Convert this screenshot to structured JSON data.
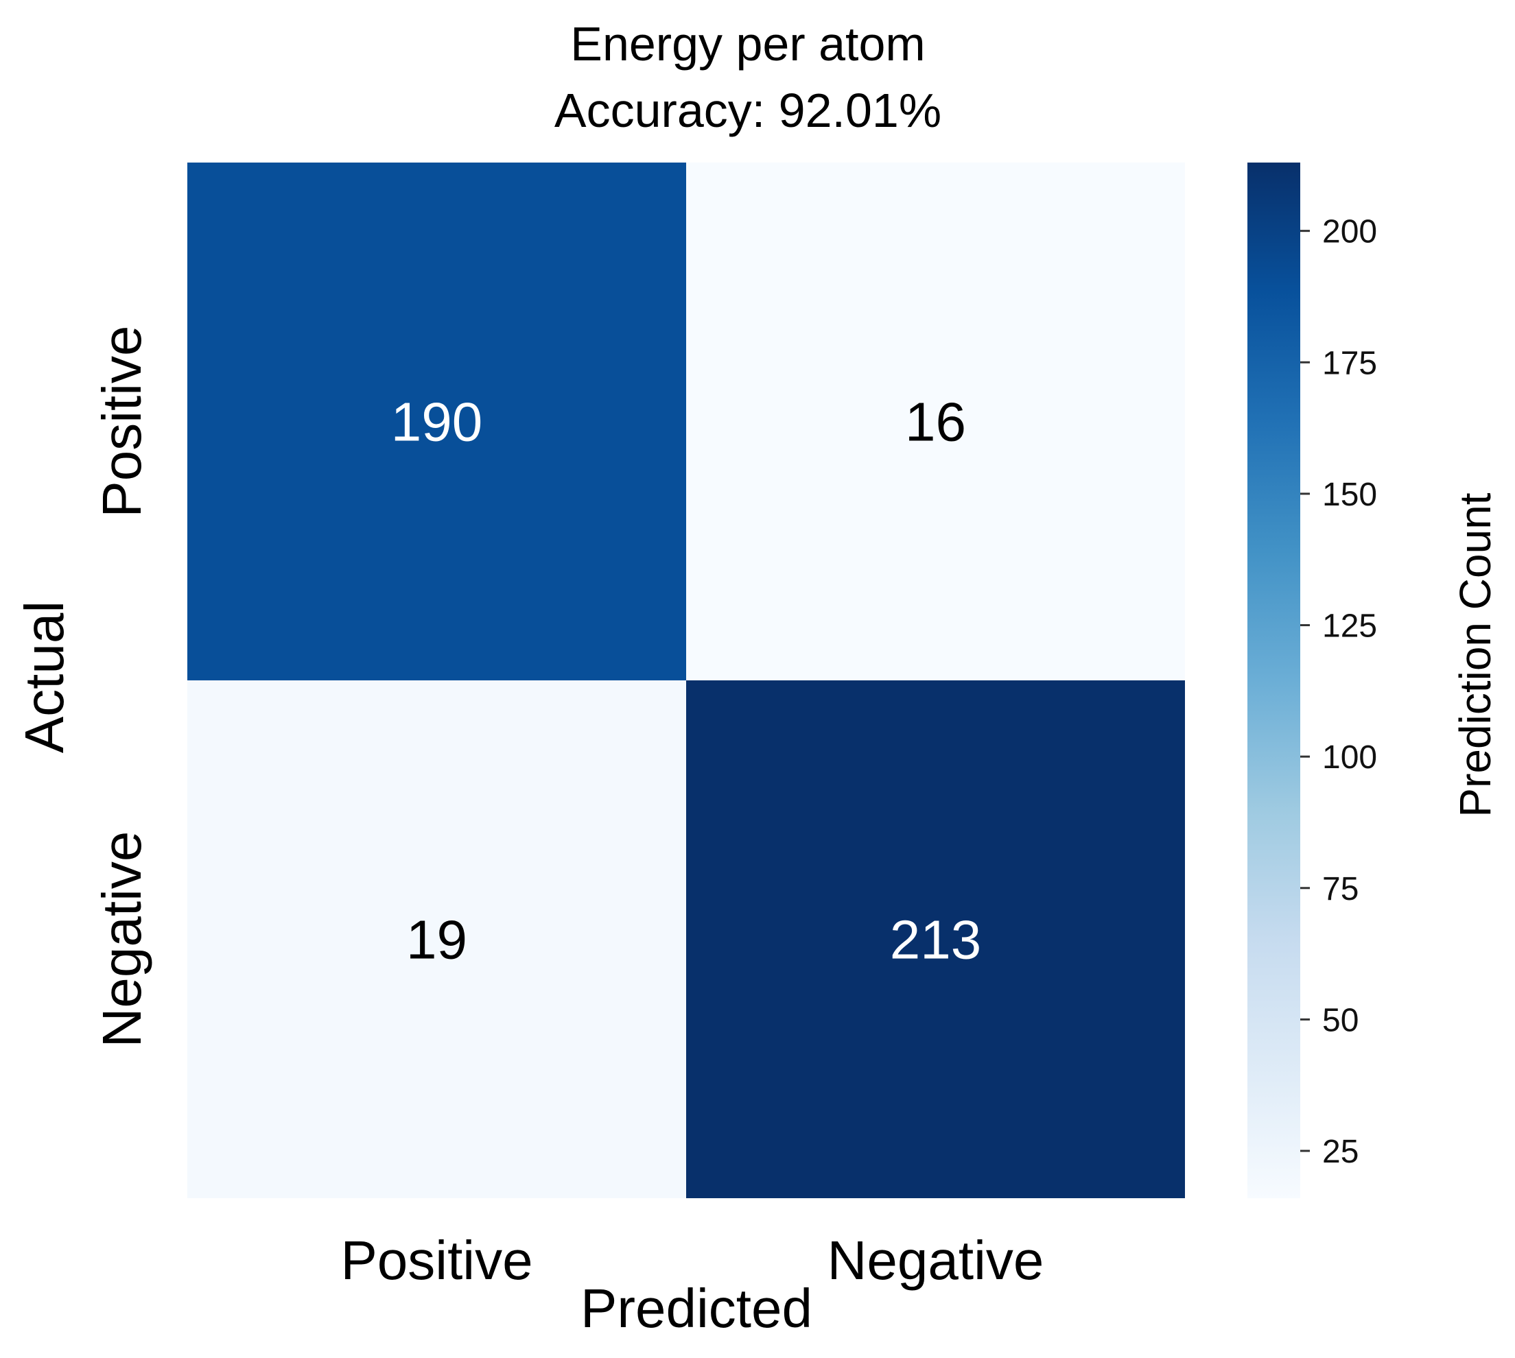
{
  "chart_data": {
    "type": "heatmap",
    "title": "Energy per atom",
    "subtitle": "Accuracy: 92.01%",
    "xlabel": "Predicted",
    "ylabel": "Actual",
    "x_categories": [
      "Positive",
      "Negative"
    ],
    "y_categories": [
      "Positive",
      "Negative"
    ],
    "values": [
      [
        190,
        16
      ],
      [
        19,
        213
      ]
    ],
    "colorbar": {
      "label": "Prediction Count",
      "range": [
        16,
        213
      ],
      "ticks": [
        25,
        50,
        75,
        100,
        125,
        150,
        175,
        200
      ],
      "colormap": "Blues",
      "colors": [
        "#f7fbff",
        "#deebf7",
        "#c6dbef",
        "#9ecae1",
        "#6baed6",
        "#4292c6",
        "#2171b5",
        "#08519c",
        "#08306b"
      ]
    }
  }
}
